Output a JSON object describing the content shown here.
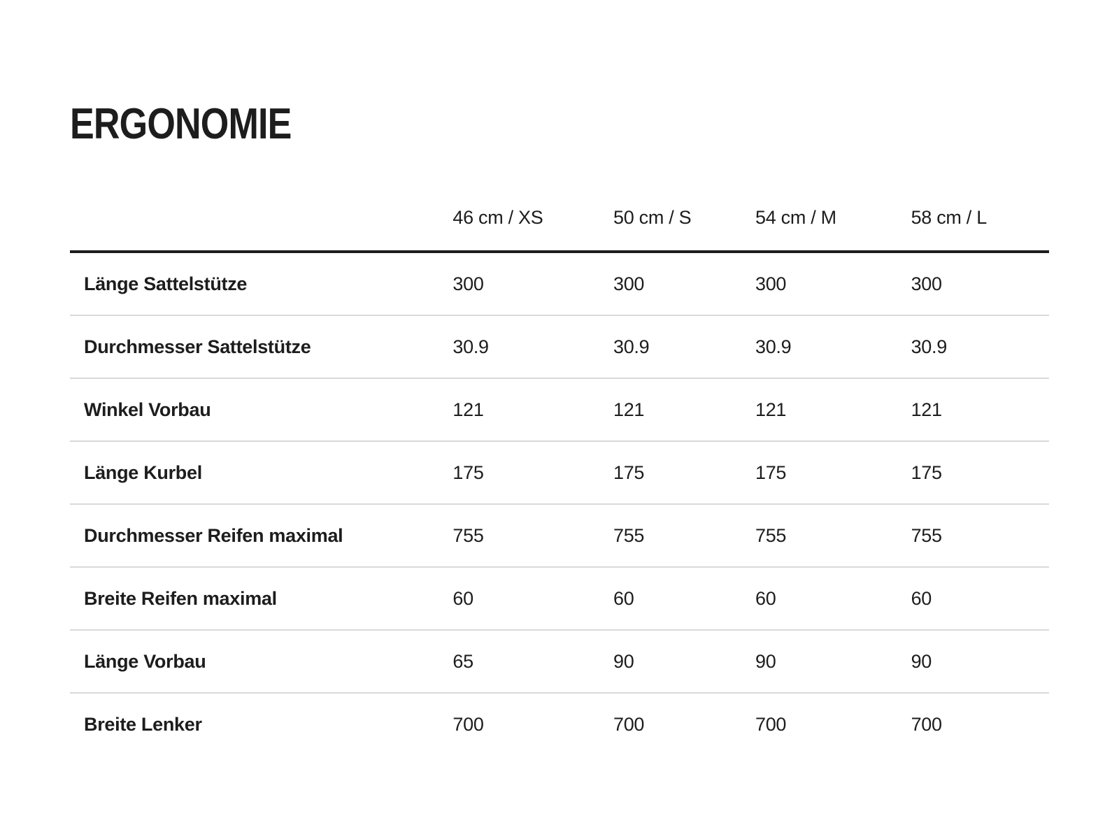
{
  "page": {
    "title": "ERGONOMIE",
    "background_color": "#ffffff",
    "text_color": "#1d1d1d",
    "heavy_rule_color": "#1d1d1d",
    "light_rule_color": "#d9d9d9"
  },
  "table": {
    "columns": [
      "46 cm / XS",
      "50 cm / S",
      "54 cm / M",
      "58 cm / L"
    ],
    "rows": [
      {
        "label": "Länge Sattelstütze",
        "values": [
          "300",
          "300",
          "300",
          "300"
        ]
      },
      {
        "label": "Durchmesser Sattelstütze",
        "values": [
          "30.9",
          "30.9",
          "30.9",
          "30.9"
        ]
      },
      {
        "label": "Winkel Vorbau",
        "values": [
          "121",
          "121",
          "121",
          "121"
        ]
      },
      {
        "label": "Länge Kurbel",
        "values": [
          "175",
          "175",
          "175",
          "175"
        ]
      },
      {
        "label": "Durchmesser Reifen maximal",
        "values": [
          "755",
          "755",
          "755",
          "755"
        ]
      },
      {
        "label": "Breite Reifen maximal",
        "values": [
          "60",
          "60",
          "60",
          "60"
        ]
      },
      {
        "label": "Länge Vorbau",
        "values": [
          "65",
          "90",
          "90",
          "90"
        ]
      },
      {
        "label": "Breite Lenker",
        "values": [
          "700",
          "700",
          "700",
          "700"
        ]
      }
    ]
  },
  "chart_data": {
    "type": "table",
    "title": "ERGONOMIE",
    "categories": [
      "46 cm / XS",
      "50 cm / S",
      "54 cm / M",
      "58 cm / L"
    ],
    "series": [
      {
        "name": "Länge Sattelstütze",
        "values": [
          300,
          300,
          300,
          300
        ]
      },
      {
        "name": "Durchmesser Sattelstütze",
        "values": [
          30.9,
          30.9,
          30.9,
          30.9
        ]
      },
      {
        "name": "Winkel Vorbau",
        "values": [
          121,
          121,
          121,
          121
        ]
      },
      {
        "name": "Länge Kurbel",
        "values": [
          175,
          175,
          175,
          175
        ]
      },
      {
        "name": "Durchmesser Reifen maximal",
        "values": [
          755,
          755,
          755,
          755
        ]
      },
      {
        "name": "Breite Reifen maximal",
        "values": [
          60,
          60,
          60,
          60
        ]
      },
      {
        "name": "Länge Vorbau",
        "values": [
          65,
          90,
          90,
          90
        ]
      },
      {
        "name": "Breite Lenker",
        "values": [
          700,
          700,
          700,
          700
        ]
      }
    ]
  }
}
